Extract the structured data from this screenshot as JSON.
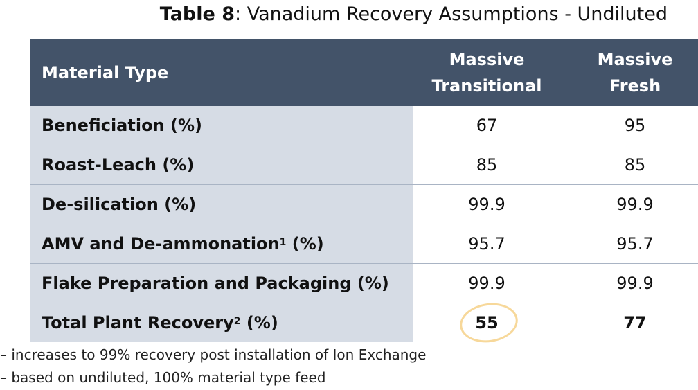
{
  "title": {
    "bold": "Table 8",
    "rest": ": Vanadium Recovery Assumptions - Undiluted"
  },
  "table": {
    "headers": {
      "material_type": "Material Type",
      "col1_line1": "Massive",
      "col1_line2": "Transitional",
      "col2_line1": "Massive",
      "col2_line2": "Fresh"
    },
    "rows": [
      {
        "label": "Beneficiation (%)",
        "v1": "67",
        "v2": "95"
      },
      {
        "label": "Roast-Leach (%)",
        "v1": "85",
        "v2": "85"
      },
      {
        "label": "De-silication (%)",
        "v1": "99.9",
        "v2": "99.9"
      },
      {
        "label_main": "AMV and De-ammonation",
        "label_sup": "1",
        "label_tail": " (%)",
        "v1": "95.7",
        "v2": "95.7"
      },
      {
        "label": "Flake Preparation and Packaging (%)",
        "v1": "99.9",
        "v2": "99.9"
      }
    ],
    "total": {
      "label_main": "Total Plant Recovery",
      "label_sup": "2",
      "label_tail": " (%)",
      "v1": "55",
      "v2": "77"
    }
  },
  "notes": [
    "– increases to 99% recovery post installation of Ion Exchange",
    "– based on undiluted, 100% material type feed"
  ]
}
